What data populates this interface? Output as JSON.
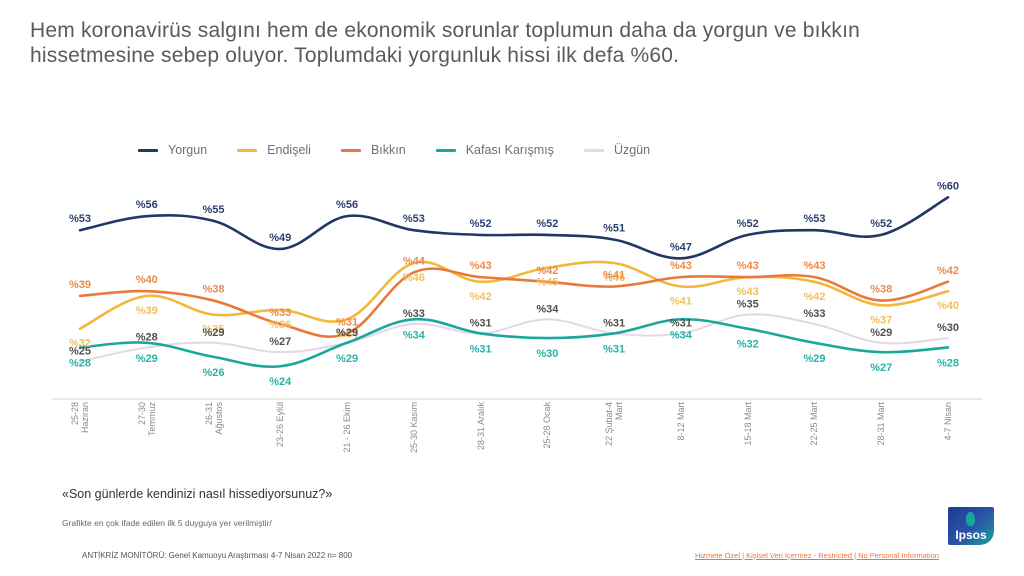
{
  "title": "Hem koronavirüs salgını hem de ekonomik sorunlar toplumun daha da yorgun ve bıkkın hissetmesine sebep oluyor. Toplumdaki yorgunluk hissi ilk defa %60.",
  "question": "«Son günlerde kendinizi nasıl hissediyorsunuz?»",
  "note": "Grafikte en çok ifade edilen ilk 5 duyguya yer verilmiştir/",
  "source": "ANTİKRİZ  MONİTÖRÜ:  Genel Kamuoyu Araştırması  4-7 Nisan 2022 n= 800",
  "classification": "Hizmete Özel | Kişisel Veri İçermez - Restricted | No Personal Information",
  "logo": {
    "text": "Ipsos",
    "icon": "ipsos-logo-icon"
  },
  "chart_data": {
    "type": "line",
    "title": "",
    "xlabel": "",
    "ylabel": "",
    "ylim": [
      20,
      62
    ],
    "grid": false,
    "legend_position": "top",
    "value_prefix": "%",
    "categories": [
      "25-28\nHaziran",
      "27-30\nTemmuz",
      "26-31\nAğustos",
      "23-26 Eylül",
      "21 - 26 Ekim",
      "25-30 Kasım",
      "28-31 Aralık",
      "25-28 Ocak",
      "22 Şubat-4\nMart",
      "8-12 Mart",
      "15-18 Mart",
      "22-25 Mart",
      "28-31 Mart",
      "4-7 Nisan"
    ],
    "series": [
      {
        "name": "Yorgun",
        "color": "#1f3864",
        "label_color": "#2b3f72",
        "values": [
          53,
          56,
          55,
          49,
          56,
          53,
          52,
          52,
          51,
          47,
          52,
          53,
          52,
          60
        ]
      },
      {
        "name": "Endişeli",
        "color": "#f2b83c",
        "label_color": "#f0c060",
        "values": [
          32,
          39,
          35,
          36,
          34,
          46,
          42,
          45,
          46,
          41,
          43,
          42,
          37,
          40
        ]
      },
      {
        "name": "Bıkkın",
        "color": "#e8793a",
        "label_color": "#ec8a4c",
        "values": [
          39,
          40,
          38,
          33,
          31,
          44,
          43,
          42,
          41,
          43,
          43,
          43,
          38,
          42
        ]
      },
      {
        "name": "Kafası Karışmış",
        "color": "#1aa89c",
        "label_color": "#26b3a8",
        "values": [
          28,
          29,
          26,
          24,
          29,
          34,
          31,
          30,
          31,
          34,
          32,
          29,
          27,
          28
        ]
      },
      {
        "name": "Üzgün",
        "color": "#e6d6ea",
        "label_color": "#505050",
        "values": [
          25,
          28,
          29,
          27,
          29,
          33,
          31,
          34,
          31,
          31,
          35,
          33,
          29,
          30
        ]
      }
    ]
  }
}
